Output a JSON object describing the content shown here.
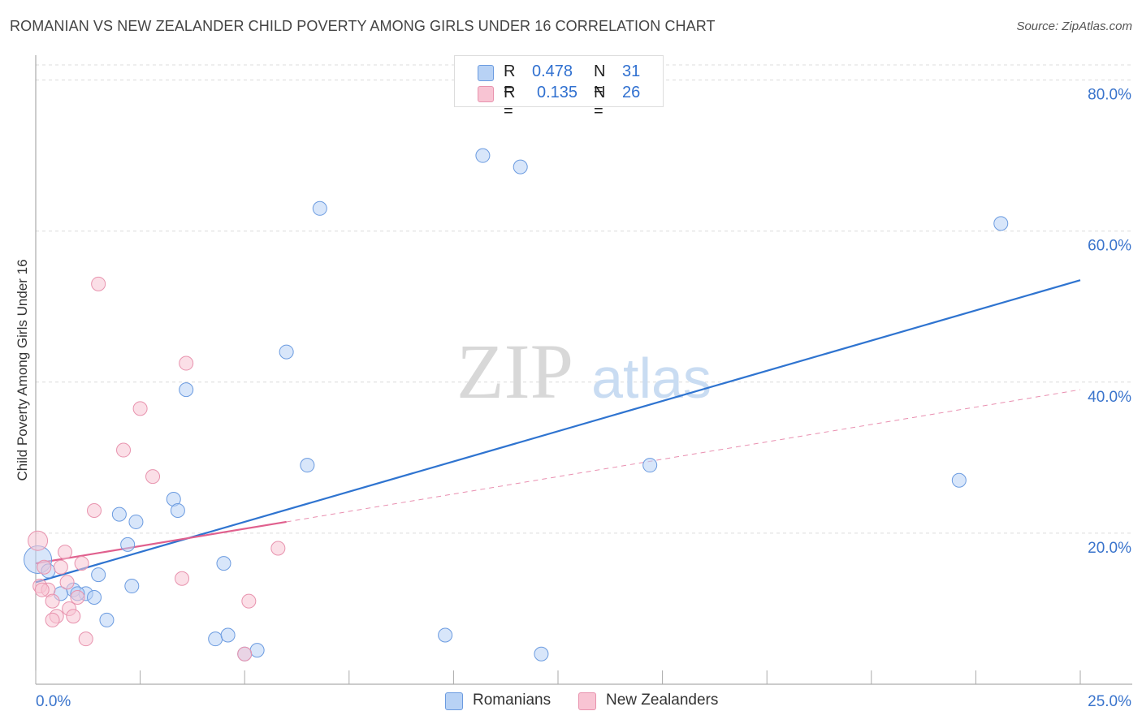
{
  "header": {
    "title": "ROMANIAN VS NEW ZEALANDER CHILD POVERTY AMONG GIRLS UNDER 16 CORRELATION CHART",
    "source": "Source: ZipAtlas.com"
  },
  "watermark": {
    "zip": "ZIP",
    "atlas": "atlas"
  },
  "legend_top": {
    "rows": [
      {
        "r_label": "R = ",
        "r_value": "0.478",
        "n_label": "N = ",
        "n_value": "31"
      },
      {
        "r_label": "R = ",
        "r_value": "0.135",
        "n_label": "N = ",
        "n_value": "26"
      }
    ]
  },
  "legend_bottom": {
    "items": [
      "Romanians",
      "New Zealanders"
    ]
  },
  "colors": {
    "romanians_fill": "#b8d2f5",
    "romanians_stroke": "#6b9be0",
    "romanians_line": "#2f74d0",
    "nz_fill": "#f8c4d3",
    "nz_stroke": "#e893ae",
    "nz_line": "#e0608e",
    "axis_label": "#3a74cc",
    "grid": "#dcdcdc"
  },
  "chart_data": {
    "type": "scatter",
    "title": "ROMANIAN VS NEW ZEALANDER CHILD POVERTY AMONG GIRLS UNDER 16 CORRELATION CHART",
    "xlabel": "",
    "ylabel": "Child Poverty Among Girls Under 16",
    "xlim": [
      0,
      25
    ],
    "ylim": [
      0,
      82
    ],
    "x_tick_labels": [
      "0.0%",
      "25.0%"
    ],
    "y_ticks": [
      20,
      40,
      60,
      80
    ],
    "y_tick_labels": [
      "20.0%",
      "40.0%",
      "60.0%",
      "80.0%"
    ],
    "grid": true,
    "legend_position": "top-center",
    "series": [
      {
        "name": "Romanians",
        "R": 0.478,
        "N": 31,
        "points": [
          [
            0.05,
            16.5
          ],
          [
            0.3,
            15.0
          ],
          [
            0.9,
            12.5
          ],
          [
            1.2,
            12.0
          ],
          [
            1.5,
            14.5
          ],
          [
            1.7,
            8.5
          ],
          [
            2.0,
            22.5
          ],
          [
            2.2,
            18.5
          ],
          [
            2.3,
            13.0
          ],
          [
            2.4,
            21.5
          ],
          [
            3.3,
            24.5
          ],
          [
            3.4,
            23.0
          ],
          [
            3.6,
            39.0
          ],
          [
            4.5,
            16.0
          ],
          [
            4.3,
            6.0
          ],
          [
            4.6,
            6.5
          ],
          [
            5.0,
            4.0
          ],
          [
            5.3,
            4.5
          ],
          [
            6.0,
            44.0
          ],
          [
            6.5,
            29.0
          ],
          [
            6.8,
            63.0
          ],
          [
            10.7,
            70.0
          ],
          [
            11.6,
            68.5
          ],
          [
            12.1,
            4.0
          ],
          [
            9.8,
            6.5
          ],
          [
            14.7,
            29.0
          ],
          [
            22.1,
            27.0
          ],
          [
            23.1,
            61.0
          ],
          [
            1.0,
            12.0
          ],
          [
            1.4,
            11.5
          ],
          [
            0.6,
            12.0
          ]
        ],
        "trend": [
          [
            0,
            13.5
          ],
          [
            25,
            53.5
          ]
        ]
      },
      {
        "name": "New Zealanders",
        "R": 0.135,
        "N": 26,
        "points": [
          [
            0.05,
            19.0
          ],
          [
            0.1,
            13.0
          ],
          [
            0.2,
            15.5
          ],
          [
            0.3,
            12.5
          ],
          [
            0.4,
            11.0
          ],
          [
            0.5,
            9.0
          ],
          [
            0.6,
            15.5
          ],
          [
            0.7,
            17.5
          ],
          [
            0.8,
            10.0
          ],
          [
            0.9,
            9.0
          ],
          [
            1.0,
            11.5
          ],
          [
            1.1,
            16.0
          ],
          [
            1.2,
            6.0
          ],
          [
            1.4,
            23.0
          ],
          [
            1.5,
            53.0
          ],
          [
            2.1,
            31.0
          ],
          [
            2.5,
            36.5
          ],
          [
            2.8,
            27.5
          ],
          [
            3.5,
            14.0
          ],
          [
            3.6,
            42.5
          ],
          [
            5.0,
            4.0
          ],
          [
            5.1,
            11.0
          ],
          [
            5.8,
            18.0
          ],
          [
            0.4,
            8.5
          ],
          [
            0.75,
            13.5
          ],
          [
            0.15,
            12.5
          ]
        ],
        "trend_solid": [
          [
            0,
            16.0
          ],
          [
            6.0,
            21.5
          ]
        ],
        "trend_dashed": [
          [
            6.0,
            21.5
          ],
          [
            25,
            39.0
          ]
        ]
      }
    ]
  }
}
